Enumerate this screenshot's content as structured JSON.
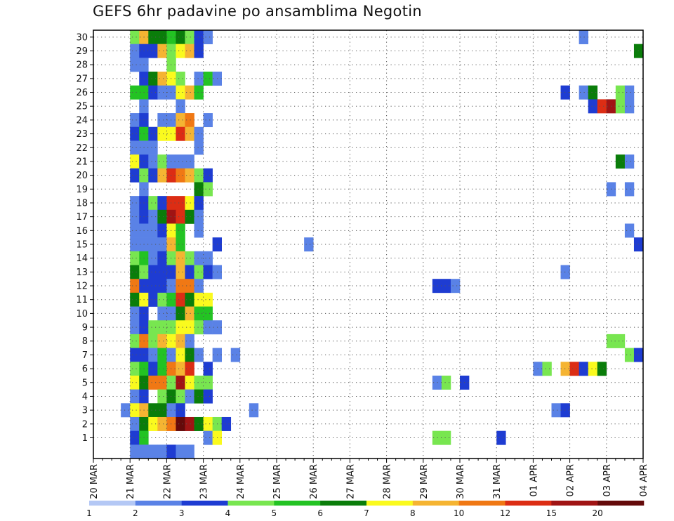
{
  "title": "GEFS 6hr padavine po ansamblima Negotin",
  "chart_data": {
    "type": "heatmap",
    "title": "GEFS 6hr padavine po ansamblima Negotin",
    "y": {
      "min": 1,
      "max": 30,
      "ticks": [
        1,
        2,
        3,
        4,
        5,
        6,
        7,
        8,
        9,
        10,
        11,
        12,
        13,
        14,
        15,
        16,
        17,
        18,
        19,
        20,
        21,
        22,
        23,
        24,
        25,
        26,
        27,
        28,
        29,
        30
      ]
    },
    "x": {
      "ticks": [
        "20 MAR",
        "21 MAR",
        "22 MAR",
        "23 MAR",
        "24 MAR",
        "25 MAR",
        "26 MAR",
        "27 MAR",
        "28 MAR",
        "29 MAR",
        "30 MAR",
        "31 MAR",
        "01 APR",
        "02 APR",
        "03 APR",
        "04 APR"
      ],
      "steps_per_day": 4
    },
    "grid": true,
    "legend": {
      "position": "bottom",
      "labels": [
        "1",
        "2",
        "3",
        "4",
        "5",
        "6",
        "7",
        "8",
        "10",
        "12",
        "15",
        "20"
      ],
      "colors": [
        "#b4c8f5",
        "#5a82e6",
        "#1e3cd2",
        "#78e650",
        "#23c323",
        "#0a7d0a",
        "#fafa1e",
        "#f5b432",
        "#f07814",
        "#dc2d14",
        "#a01414",
        "#640a0a"
      ]
    },
    "cells": [
      [
        30,
        4,
        3
      ],
      [
        30,
        5,
        7
      ],
      [
        30,
        6,
        5
      ],
      [
        30,
        7,
        5
      ],
      [
        30,
        8,
        4
      ],
      [
        30,
        9,
        5
      ],
      [
        30,
        10,
        3
      ],
      [
        30,
        11,
        2
      ],
      [
        30,
        12,
        1
      ],
      [
        30,
        53,
        1
      ],
      [
        29,
        4,
        1
      ],
      [
        29,
        5,
        2
      ],
      [
        29,
        6,
        2
      ],
      [
        29,
        7,
        7
      ],
      [
        29,
        8,
        3
      ],
      [
        29,
        9,
        6
      ],
      [
        29,
        10,
        7
      ],
      [
        29,
        11,
        2
      ],
      [
        29,
        59,
        5
      ],
      [
        28,
        4,
        1
      ],
      [
        28,
        5,
        1
      ],
      [
        28,
        8,
        3
      ],
      [
        27,
        5,
        2
      ],
      [
        27,
        6,
        5
      ],
      [
        27,
        7,
        7
      ],
      [
        27,
        8,
        6
      ],
      [
        27,
        9,
        3
      ],
      [
        27,
        11,
        1
      ],
      [
        27,
        12,
        4
      ],
      [
        27,
        13,
        1
      ],
      [
        26,
        4,
        4
      ],
      [
        26,
        5,
        4
      ],
      [
        26,
        6,
        2
      ],
      [
        26,
        7,
        1
      ],
      [
        26,
        8,
        1
      ],
      [
        26,
        9,
        6
      ],
      [
        26,
        10,
        7
      ],
      [
        26,
        11,
        4
      ],
      [
        26,
        51,
        2
      ],
      [
        26,
        53,
        1
      ],
      [
        26,
        54,
        5
      ],
      [
        26,
        57,
        3
      ],
      [
        26,
        58,
        1
      ],
      [
        25,
        5,
        1
      ],
      [
        25,
        9,
        1
      ],
      [
        25,
        54,
        2
      ],
      [
        25,
        55,
        9
      ],
      [
        25,
        56,
        10
      ],
      [
        25,
        57,
        3
      ],
      [
        25,
        58,
        1
      ],
      [
        24,
        4,
        1
      ],
      [
        24,
        5,
        2
      ],
      [
        24,
        7,
        1
      ],
      [
        24,
        8,
        1
      ],
      [
        24,
        9,
        7
      ],
      [
        24,
        10,
        8
      ],
      [
        24,
        12,
        1
      ],
      [
        23,
        4,
        2
      ],
      [
        23,
        5,
        4
      ],
      [
        23,
        6,
        2
      ],
      [
        23,
        7,
        6
      ],
      [
        23,
        8,
        6
      ],
      [
        23,
        9,
        9
      ],
      [
        23,
        10,
        7
      ],
      [
        23,
        11,
        1
      ],
      [
        22,
        4,
        1
      ],
      [
        22,
        5,
        1
      ],
      [
        22,
        6,
        1
      ],
      [
        22,
        11,
        1
      ],
      [
        21,
        4,
        6
      ],
      [
        21,
        5,
        2
      ],
      [
        21,
        6,
        1
      ],
      [
        21,
        7,
        3
      ],
      [
        21,
        8,
        1
      ],
      [
        21,
        9,
        1
      ],
      [
        21,
        10,
        1
      ],
      [
        21,
        57,
        5
      ],
      [
        21,
        58,
        1
      ],
      [
        20,
        4,
        2
      ],
      [
        20,
        5,
        3
      ],
      [
        20,
        6,
        2
      ],
      [
        20,
        7,
        7
      ],
      [
        20,
        8,
        9
      ],
      [
        20,
        9,
        8
      ],
      [
        20,
        10,
        7
      ],
      [
        20,
        11,
        3
      ],
      [
        20,
        12,
        2
      ],
      [
        19,
        5,
        1
      ],
      [
        19,
        11,
        5
      ],
      [
        19,
        12,
        3
      ],
      [
        19,
        56,
        1
      ],
      [
        19,
        58,
        1
      ],
      [
        18,
        4,
        1
      ],
      [
        18,
        5,
        2
      ],
      [
        18,
        6,
        3
      ],
      [
        18,
        7,
        2
      ],
      [
        18,
        8,
        9
      ],
      [
        18,
        9,
        9
      ],
      [
        18,
        10,
        6
      ],
      [
        18,
        11,
        2
      ],
      [
        17,
        4,
        1
      ],
      [
        17,
        5,
        2
      ],
      [
        17,
        6,
        1
      ],
      [
        17,
        7,
        5
      ],
      [
        17,
        8,
        10
      ],
      [
        17,
        9,
        9
      ],
      [
        17,
        10,
        5
      ],
      [
        17,
        11,
        1
      ],
      [
        16,
        4,
        1
      ],
      [
        16,
        5,
        1
      ],
      [
        16,
        6,
        1
      ],
      [
        16,
        7,
        2
      ],
      [
        16,
        8,
        6
      ],
      [
        16,
        9,
        4
      ],
      [
        16,
        11,
        1
      ],
      [
        16,
        58,
        1
      ],
      [
        15,
        4,
        1
      ],
      [
        15,
        5,
        1
      ],
      [
        15,
        6,
        1
      ],
      [
        15,
        7,
        1
      ],
      [
        15,
        8,
        7
      ],
      [
        15,
        9,
        4
      ],
      [
        15,
        13,
        2
      ],
      [
        15,
        23,
        1
      ],
      [
        15,
        59,
        2
      ],
      [
        14,
        4,
        3
      ],
      [
        14,
        5,
        4
      ],
      [
        14,
        6,
        1
      ],
      [
        14,
        7,
        2
      ],
      [
        14,
        8,
        3
      ],
      [
        14,
        9,
        7
      ],
      [
        14,
        10,
        3
      ],
      [
        14,
        11,
        1
      ],
      [
        14,
        12,
        1
      ],
      [
        13,
        4,
        5
      ],
      [
        13,
        5,
        3
      ],
      [
        13,
        6,
        2
      ],
      [
        13,
        7,
        2
      ],
      [
        13,
        8,
        2
      ],
      [
        13,
        9,
        7
      ],
      [
        13,
        10,
        2
      ],
      [
        13,
        11,
        3
      ],
      [
        13,
        12,
        2
      ],
      [
        13,
        13,
        1
      ],
      [
        13,
        51,
        1
      ],
      [
        12,
        4,
        8
      ],
      [
        12,
        5,
        2
      ],
      [
        12,
        6,
        2
      ],
      [
        12,
        7,
        2
      ],
      [
        12,
        8,
        1
      ],
      [
        12,
        9,
        8
      ],
      [
        12,
        10,
        8
      ],
      [
        12,
        11,
        1
      ],
      [
        12,
        37,
        2
      ],
      [
        12,
        38,
        2
      ],
      [
        12,
        39,
        1
      ],
      [
        11,
        4,
        5
      ],
      [
        11,
        5,
        6
      ],
      [
        11,
        6,
        2
      ],
      [
        11,
        7,
        3
      ],
      [
        11,
        8,
        4
      ],
      [
        11,
        9,
        9
      ],
      [
        11,
        10,
        5
      ],
      [
        11,
        11,
        6
      ],
      [
        11,
        12,
        6
      ],
      [
        10,
        4,
        1
      ],
      [
        10,
        5,
        2
      ],
      [
        10,
        7,
        1
      ],
      [
        10,
        8,
        1
      ],
      [
        10,
        9,
        5
      ],
      [
        10,
        10,
        7
      ],
      [
        10,
        11,
        4
      ],
      [
        10,
        12,
        4
      ],
      [
        9,
        4,
        1
      ],
      [
        9,
        5,
        2
      ],
      [
        9,
        6,
        3
      ],
      [
        9,
        7,
        3
      ],
      [
        9,
        8,
        3
      ],
      [
        9,
        9,
        6
      ],
      [
        9,
        10,
        6
      ],
      [
        9,
        11,
        3
      ],
      [
        9,
        12,
        1
      ],
      [
        9,
        13,
        1
      ],
      [
        8,
        4,
        3
      ],
      [
        8,
        5,
        8
      ],
      [
        8,
        6,
        3
      ],
      [
        8,
        7,
        7
      ],
      [
        8,
        8,
        6
      ],
      [
        8,
        9,
        7
      ],
      [
        8,
        10,
        1
      ],
      [
        8,
        56,
        3
      ],
      [
        8,
        57,
        3
      ],
      [
        7,
        4,
        2
      ],
      [
        7,
        5,
        2
      ],
      [
        7,
        6,
        1
      ],
      [
        7,
        7,
        4
      ],
      [
        7,
        8,
        1
      ],
      [
        7,
        9,
        6
      ],
      [
        7,
        10,
        5
      ],
      [
        7,
        11,
        1
      ],
      [
        7,
        13,
        1
      ],
      [
        7,
        15,
        1
      ],
      [
        7,
        58,
        3
      ],
      [
        7,
        59,
        2
      ],
      [
        6,
        4,
        3
      ],
      [
        6,
        5,
        4
      ],
      [
        6,
        6,
        2
      ],
      [
        6,
        7,
        4
      ],
      [
        6,
        8,
        8
      ],
      [
        6,
        9,
        7
      ],
      [
        6,
        10,
        9
      ],
      [
        6,
        12,
        2
      ],
      [
        6,
        48,
        1
      ],
      [
        6,
        49,
        3
      ],
      [
        6,
        51,
        7
      ],
      [
        6,
        52,
        9
      ],
      [
        6,
        53,
        2
      ],
      [
        6,
        54,
        6
      ],
      [
        6,
        55,
        5
      ],
      [
        5,
        4,
        6
      ],
      [
        5,
        5,
        5
      ],
      [
        5,
        6,
        8
      ],
      [
        5,
        7,
        8
      ],
      [
        5,
        8,
        3
      ],
      [
        5,
        9,
        10
      ],
      [
        5,
        10,
        6
      ],
      [
        5,
        11,
        3
      ],
      [
        5,
        12,
        3
      ],
      [
        5,
        37,
        1
      ],
      [
        5,
        38,
        3
      ],
      [
        5,
        40,
        2
      ],
      [
        4,
        4,
        1
      ],
      [
        4,
        5,
        2
      ],
      [
        4,
        7,
        3
      ],
      [
        4,
        8,
        5
      ],
      [
        4,
        9,
        3
      ],
      [
        4,
        10,
        1
      ],
      [
        4,
        11,
        5
      ],
      [
        4,
        12,
        2
      ],
      [
        3,
        3,
        1
      ],
      [
        3,
        4,
        6
      ],
      [
        3,
        5,
        7
      ],
      [
        3,
        6,
        5
      ],
      [
        3,
        7,
        5
      ],
      [
        3,
        8,
        1
      ],
      [
        3,
        9,
        2
      ],
      [
        3,
        17,
        1
      ],
      [
        3,
        50,
        1
      ],
      [
        3,
        51,
        2
      ],
      [
        2,
        4,
        1
      ],
      [
        2,
        5,
        5
      ],
      [
        2,
        6,
        6
      ],
      [
        2,
        7,
        7
      ],
      [
        2,
        8,
        8
      ],
      [
        2,
        9,
        11
      ],
      [
        2,
        10,
        10
      ],
      [
        2,
        11,
        5
      ],
      [
        2,
        12,
        6
      ],
      [
        2,
        13,
        3
      ],
      [
        2,
        14,
        2
      ],
      [
        1,
        4,
        2
      ],
      [
        1,
        5,
        4
      ],
      [
        1,
        12,
        1
      ],
      [
        1,
        13,
        6
      ],
      [
        1,
        37,
        3
      ],
      [
        1,
        38,
        3
      ],
      [
        1,
        44,
        2
      ],
      [
        0,
        4,
        1
      ],
      [
        0,
        5,
        1
      ],
      [
        0,
        6,
        1
      ],
      [
        0,
        7,
        1
      ],
      [
        0,
        8,
        2
      ],
      [
        0,
        9,
        1
      ],
      [
        0,
        10,
        1
      ]
    ]
  }
}
